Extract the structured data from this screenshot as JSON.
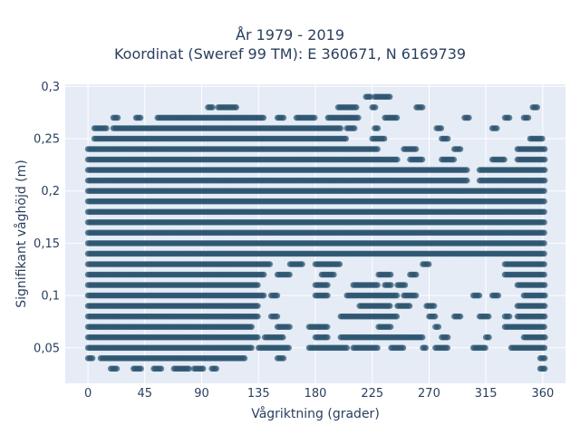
{
  "chart_data": {
    "type": "scatter",
    "title": "År 1979 - 2019",
    "subtitle": "Koordinat (Sweref 99 TM): E 360671, N 6169739",
    "xlabel": "Vågriktning (grader)",
    "ylabel": "Signifikant våghöjd (m)",
    "xlim": [
      -18,
      378
    ],
    "ylim": [
      0.016,
      0.302
    ],
    "xticks": [
      0,
      45,
      90,
      135,
      180,
      225,
      270,
      315,
      360
    ],
    "xtick_labels": [
      "0",
      "45",
      "90",
      "135",
      "180",
      "225",
      "270",
      "315",
      "360"
    ],
    "yticks": [
      0.05,
      0.1,
      0.15,
      0.2,
      0.25,
      0.3
    ],
    "ytick_labels": [
      "0,05",
      "0,1",
      "0,15",
      "0,2",
      "0,25",
      "0,3"
    ],
    "grid": true,
    "marker_color": "#2e5670",
    "marker_opacity": 0.7,
    "bands": [
      {
        "y": 0.03,
        "ranges": [
          [
            18,
            23
          ],
          [
            36,
            42
          ],
          [
            52,
            58
          ],
          [
            68,
            80
          ],
          [
            84,
            92
          ],
          [
            98,
            102
          ],
          [
            358,
            362
          ]
        ]
      },
      {
        "y": 0.04,
        "ranges": [
          [
            0,
            4
          ],
          [
            10,
            125
          ],
          [
            150,
            155
          ],
          [
            358,
            362
          ]
        ]
      },
      {
        "y": 0.05,
        "ranges": [
          [
            0,
            130
          ],
          [
            135,
            160
          ],
          [
            175,
            205
          ],
          [
            210,
            230
          ],
          [
            240,
            250
          ],
          [
            265,
            268
          ],
          [
            275,
            285
          ],
          [
            305,
            315
          ],
          [
            335,
            362
          ]
        ]
      },
      {
        "y": 0.06,
        "ranges": [
          [
            0,
            135
          ],
          [
            140,
            155
          ],
          [
            180,
            190
          ],
          [
            200,
            265
          ],
          [
            280,
            285
          ],
          [
            315,
            318
          ],
          [
            345,
            362
          ]
        ]
      },
      {
        "y": 0.07,
        "ranges": [
          [
            0,
            130
          ],
          [
            150,
            160
          ],
          [
            175,
            190
          ],
          [
            230,
            240
          ],
          [
            275,
            278
          ],
          [
            330,
            362
          ]
        ]
      },
      {
        "y": 0.08,
        "ranges": [
          [
            0,
            135
          ],
          [
            145,
            150
          ],
          [
            200,
            245
          ],
          [
            270,
            275
          ],
          [
            290,
            295
          ],
          [
            310,
            318
          ],
          [
            330,
            334
          ],
          [
            340,
            362
          ]
        ]
      },
      {
        "y": 0.09,
        "ranges": [
          [
            0,
            135
          ],
          [
            215,
            240
          ],
          [
            245,
            255
          ],
          [
            268,
            275
          ],
          [
            340,
            362
          ]
        ]
      },
      {
        "y": 0.1,
        "ranges": [
          [
            0,
            140
          ],
          [
            145,
            150
          ],
          [
            180,
            190
          ],
          [
            205,
            245
          ],
          [
            250,
            260
          ],
          [
            305,
            310
          ],
          [
            320,
            325
          ],
          [
            345,
            362
          ]
        ]
      },
      {
        "y": 0.11,
        "ranges": [
          [
            0,
            135
          ],
          [
            180,
            190
          ],
          [
            210,
            230
          ],
          [
            235,
            240
          ],
          [
            245,
            252
          ],
          [
            340,
            362
          ]
        ]
      },
      {
        "y": 0.12,
        "ranges": [
          [
            0,
            140
          ],
          [
            150,
            160
          ],
          [
            185,
            195
          ],
          [
            230,
            240
          ],
          [
            255,
            260
          ],
          [
            330,
            362
          ]
        ]
      },
      {
        "y": 0.13,
        "ranges": [
          [
            0,
            145
          ],
          [
            160,
            170
          ],
          [
            180,
            200
          ],
          [
            265,
            270
          ],
          [
            330,
            362
          ]
        ]
      },
      {
        "y": 0.14,
        "ranges": [
          [
            0,
            362
          ]
        ]
      },
      {
        "y": 0.15,
        "ranges": [
          [
            0,
            362
          ]
        ]
      },
      {
        "y": 0.16,
        "ranges": [
          [
            0,
            362
          ]
        ]
      },
      {
        "y": 0.17,
        "ranges": [
          [
            0,
            362
          ]
        ]
      },
      {
        "y": 0.18,
        "ranges": [
          [
            0,
            362
          ]
        ]
      },
      {
        "y": 0.19,
        "ranges": [
          [
            0,
            362
          ]
        ]
      },
      {
        "y": 0.2,
        "ranges": [
          [
            0,
            362
          ]
        ]
      },
      {
        "y": 0.21,
        "ranges": [
          [
            0,
            300
          ],
          [
            310,
            362
          ]
        ]
      },
      {
        "y": 0.22,
        "ranges": [
          [
            0,
            300
          ],
          [
            310,
            362
          ]
        ]
      },
      {
        "y": 0.23,
        "ranges": [
          [
            0,
            245
          ],
          [
            255,
            265
          ],
          [
            280,
            290
          ],
          [
            320,
            330
          ],
          [
            340,
            362
          ]
        ]
      },
      {
        "y": 0.24,
        "ranges": [
          [
            0,
            230
          ],
          [
            250,
            260
          ],
          [
            290,
            295
          ],
          [
            340,
            362
          ]
        ]
      },
      {
        "y": 0.25,
        "ranges": [
          [
            5,
            205
          ],
          [
            225,
            235
          ],
          [
            280,
            285
          ],
          [
            350,
            360
          ]
        ]
      },
      {
        "y": 0.26,
        "ranges": [
          [
            5,
            15
          ],
          [
            20,
            200
          ],
          [
            205,
            212
          ],
          [
            227,
            230
          ],
          [
            276,
            280
          ],
          [
            320,
            324
          ]
        ]
      },
      {
        "y": 0.27,
        "ranges": [
          [
            20,
            24
          ],
          [
            38,
            42
          ],
          [
            55,
            140
          ],
          [
            150,
            155
          ],
          [
            165,
            180
          ],
          [
            190,
            215
          ],
          [
            235,
            245
          ],
          [
            298,
            302
          ],
          [
            330,
            334
          ],
          [
            345,
            349
          ]
        ]
      },
      {
        "y": 0.28,
        "ranges": [
          [
            95,
            99
          ],
          [
            103,
            118
          ],
          [
            198,
            213
          ],
          [
            225,
            228
          ],
          [
            260,
            265
          ],
          [
            352,
            356
          ]
        ]
      },
      {
        "y": 0.29,
        "ranges": [
          [
            220,
            224
          ],
          [
            227,
            240
          ]
        ]
      }
    ]
  }
}
